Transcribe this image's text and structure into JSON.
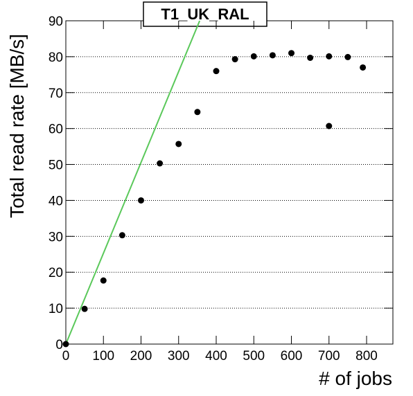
{
  "chart_data": {
    "type": "scatter",
    "title": "T1_UK_RAL",
    "x_label": "# of jobs",
    "y_label": "Total read rate [MB/s]",
    "series": [
      {
        "color": "#000000",
        "x": [
          0,
          50,
          100,
          150,
          200,
          250,
          300,
          350,
          400,
          450,
          500,
          550,
          600,
          650,
          700,
          700,
          750,
          790
        ],
        "values": [
          0,
          9.8,
          17.7,
          30.3,
          40,
          50.3,
          55.7,
          64.6,
          76,
          79.3,
          80.1,
          80.4,
          81,
          79.7,
          80.1,
          60.7,
          79.9,
          77
        ]
      }
    ],
    "line": {
      "color": "#5ac85a",
      "x": [
        0,
        356
      ],
      "values": [
        0,
        90
      ]
    },
    "xlim": [
      0,
      870
    ],
    "xticks": [
      0,
      100,
      200,
      300,
      400,
      500,
      600,
      700,
      800
    ],
    "ylim": [
      0,
      90
    ],
    "yticks": [
      0,
      10,
      20,
      30,
      40,
      50,
      60,
      70,
      80,
      90
    ],
    "grid": true
  }
}
